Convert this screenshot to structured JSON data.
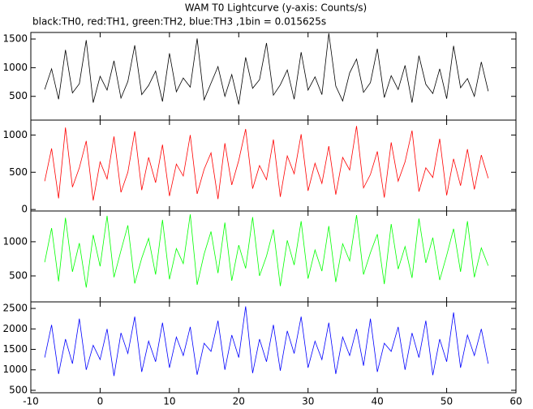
{
  "chart_data": [
    {
      "type": "line",
      "title": "WAM T0 Lightcurve (y-axis: Counts/s)",
      "subtitle": "black:TH0, red:TH1, green:TH2, blue:TH3 ,1bin = 0.015625s",
      "color": "#000000",
      "xlim": [
        -10,
        60
      ],
      "ylim": [
        86,
        1614
      ],
      "yticks": [
        500,
        1000,
        1500
      ],
      "x": [
        -8,
        -7,
        -6,
        -5,
        -4,
        -3,
        -2,
        -1,
        0,
        1,
        2,
        3,
        4,
        5,
        6,
        7,
        8,
        9,
        10,
        11,
        12,
        13,
        14,
        15,
        16,
        17,
        18,
        19,
        20,
        21,
        22,
        23,
        24,
        25,
        26,
        27,
        28,
        29,
        30,
        31,
        32,
        33,
        34,
        35,
        36,
        37,
        38,
        39,
        40,
        41,
        42,
        43,
        44,
        45,
        46,
        47,
        48,
        49,
        50,
        51,
        52,
        53,
        54,
        55,
        56
      ],
      "values": [
        620,
        980,
        450,
        1310,
        560,
        720,
        1480,
        390,
        850,
        610,
        1120,
        470,
        760,
        1390,
        530,
        690,
        940,
        410,
        1250,
        580,
        820,
        660,
        1510,
        440,
        730,
        1020,
        500,
        880,
        360,
        1180,
        640,
        790,
        1430,
        520,
        700,
        960,
        450,
        1270,
        610,
        840,
        530,
        1600,
        680,
        420,
        910,
        1150,
        570,
        740,
        1330,
        480,
        860,
        620,
        1040,
        390,
        1210,
        710,
        550,
        980,
        460,
        1380,
        650,
        810,
        500,
        1100,
        590
      ]
    },
    {
      "type": "line",
      "color": "#ff0000",
      "xlim": [
        -10,
        60
      ],
      "ylim": [
        -20,
        1200
      ],
      "yticks": [
        0,
        500,
        1000
      ],
      "x": [
        -8,
        -7,
        -6,
        -5,
        -4,
        -3,
        -2,
        -1,
        0,
        1,
        2,
        3,
        4,
        5,
        6,
        7,
        8,
        9,
        10,
        11,
        12,
        13,
        14,
        15,
        16,
        17,
        18,
        19,
        20,
        21,
        22,
        23,
        24,
        25,
        26,
        27,
        28,
        29,
        30,
        31,
        32,
        33,
        34,
        35,
        36,
        37,
        38,
        39,
        40,
        41,
        42,
        43,
        44,
        45,
        46,
        47,
        48,
        49,
        50,
        51,
        52,
        53,
        54,
        55,
        56
      ],
      "values": [
        380,
        820,
        150,
        1100,
        300,
        560,
        920,
        120,
        640,
        410,
        980,
        230,
        500,
        1050,
        260,
        700,
        360,
        870,
        180,
        610,
        450,
        1000,
        210,
        540,
        760,
        140,
        890,
        330,
        660,
        1080,
        280,
        590,
        400,
        940,
        170,
        720,
        480,
        1010,
        250,
        620,
        350,
        850,
        200,
        700,
        530,
        1120,
        290,
        470,
        780,
        160,
        900,
        380,
        640,
        1060,
        240,
        560,
        430,
        950,
        190,
        680,
        320,
        810,
        270,
        730,
        420
      ]
    },
    {
      "type": "line",
      "color": "#00ff00",
      "xlim": [
        -10,
        60
      ],
      "ylim": [
        120,
        1450
      ],
      "yticks": [
        500,
        1000
      ],
      "x": [
        -8,
        -7,
        -6,
        -5,
        -4,
        -3,
        -2,
        -1,
        0,
        1,
        2,
        3,
        4,
        5,
        6,
        7,
        8,
        9,
        10,
        11,
        12,
        13,
        14,
        15,
        16,
        17,
        18,
        19,
        20,
        21,
        22,
        23,
        24,
        25,
        26,
        27,
        28,
        29,
        30,
        31,
        32,
        33,
        34,
        35,
        36,
        37,
        38,
        39,
        40,
        41,
        42,
        43,
        44,
        45,
        46,
        47,
        48,
        49,
        50,
        51,
        52,
        53,
        54,
        55,
        56
      ],
      "values": [
        700,
        1200,
        420,
        1350,
        560,
        980,
        330,
        1100,
        640,
        1380,
        480,
        870,
        1240,
        390,
        760,
        1050,
        520,
        1320,
        450,
        900,
        680,
        1400,
        370,
        820,
        1150,
        540,
        1280,
        430,
        950,
        610,
        1360,
        500,
        790,
        1180,
        350,
        1020,
        660,
        1300,
        460,
        880,
        570,
        1230,
        410,
        970,
        720,
        1390,
        520,
        840,
        1110,
        380,
        1260,
        600,
        930,
        470,
        1340,
        690,
        1060,
        440,
        800,
        1190,
        560,
        1300,
        480,
        910,
        650
      ]
    },
    {
      "type": "line",
      "color": "#0000ff",
      "xlim": [
        -10,
        60
      ],
      "ylim": [
        440,
        2660
      ],
      "yticks": [
        500,
        1000,
        1500,
        2000,
        2500
      ],
      "xticks": [
        -10,
        0,
        10,
        20,
        30,
        40,
        50,
        60
      ],
      "x": [
        -8,
        -7,
        -6,
        -5,
        -4,
        -3,
        -2,
        -1,
        0,
        1,
        2,
        3,
        4,
        5,
        6,
        7,
        8,
        9,
        10,
        11,
        12,
        13,
        14,
        15,
        16,
        17,
        18,
        19,
        20,
        21,
        22,
        23,
        24,
        25,
        26,
        27,
        28,
        29,
        30,
        31,
        32,
        33,
        34,
        35,
        36,
        37,
        38,
        39,
        40,
        41,
        42,
        43,
        44,
        45,
        46,
        47,
        48,
        49,
        50,
        51,
        52,
        53,
        54,
        55,
        56
      ],
      "values": [
        1300,
        2100,
        900,
        1750,
        1150,
        2250,
        1000,
        1600,
        1250,
        2000,
        850,
        1900,
        1400,
        2300,
        950,
        1700,
        1200,
        2150,
        1050,
        1800,
        1350,
        2050,
        880,
        1650,
        1450,
        2200,
        1000,
        1850,
        1300,
        2550,
        920,
        1750,
        1200,
        2100,
        980,
        1950,
        1400,
        2300,
        1050,
        1700,
        1250,
        2150,
        900,
        1800,
        1350,
        2000,
        1100,
        2250,
        950,
        1650,
        1450,
        2050,
        1000,
        1900,
        1300,
        2200,
        870,
        1750,
        1200,
        2400,
        1050,
        1850,
        1350,
        2000,
        1150
      ]
    }
  ]
}
